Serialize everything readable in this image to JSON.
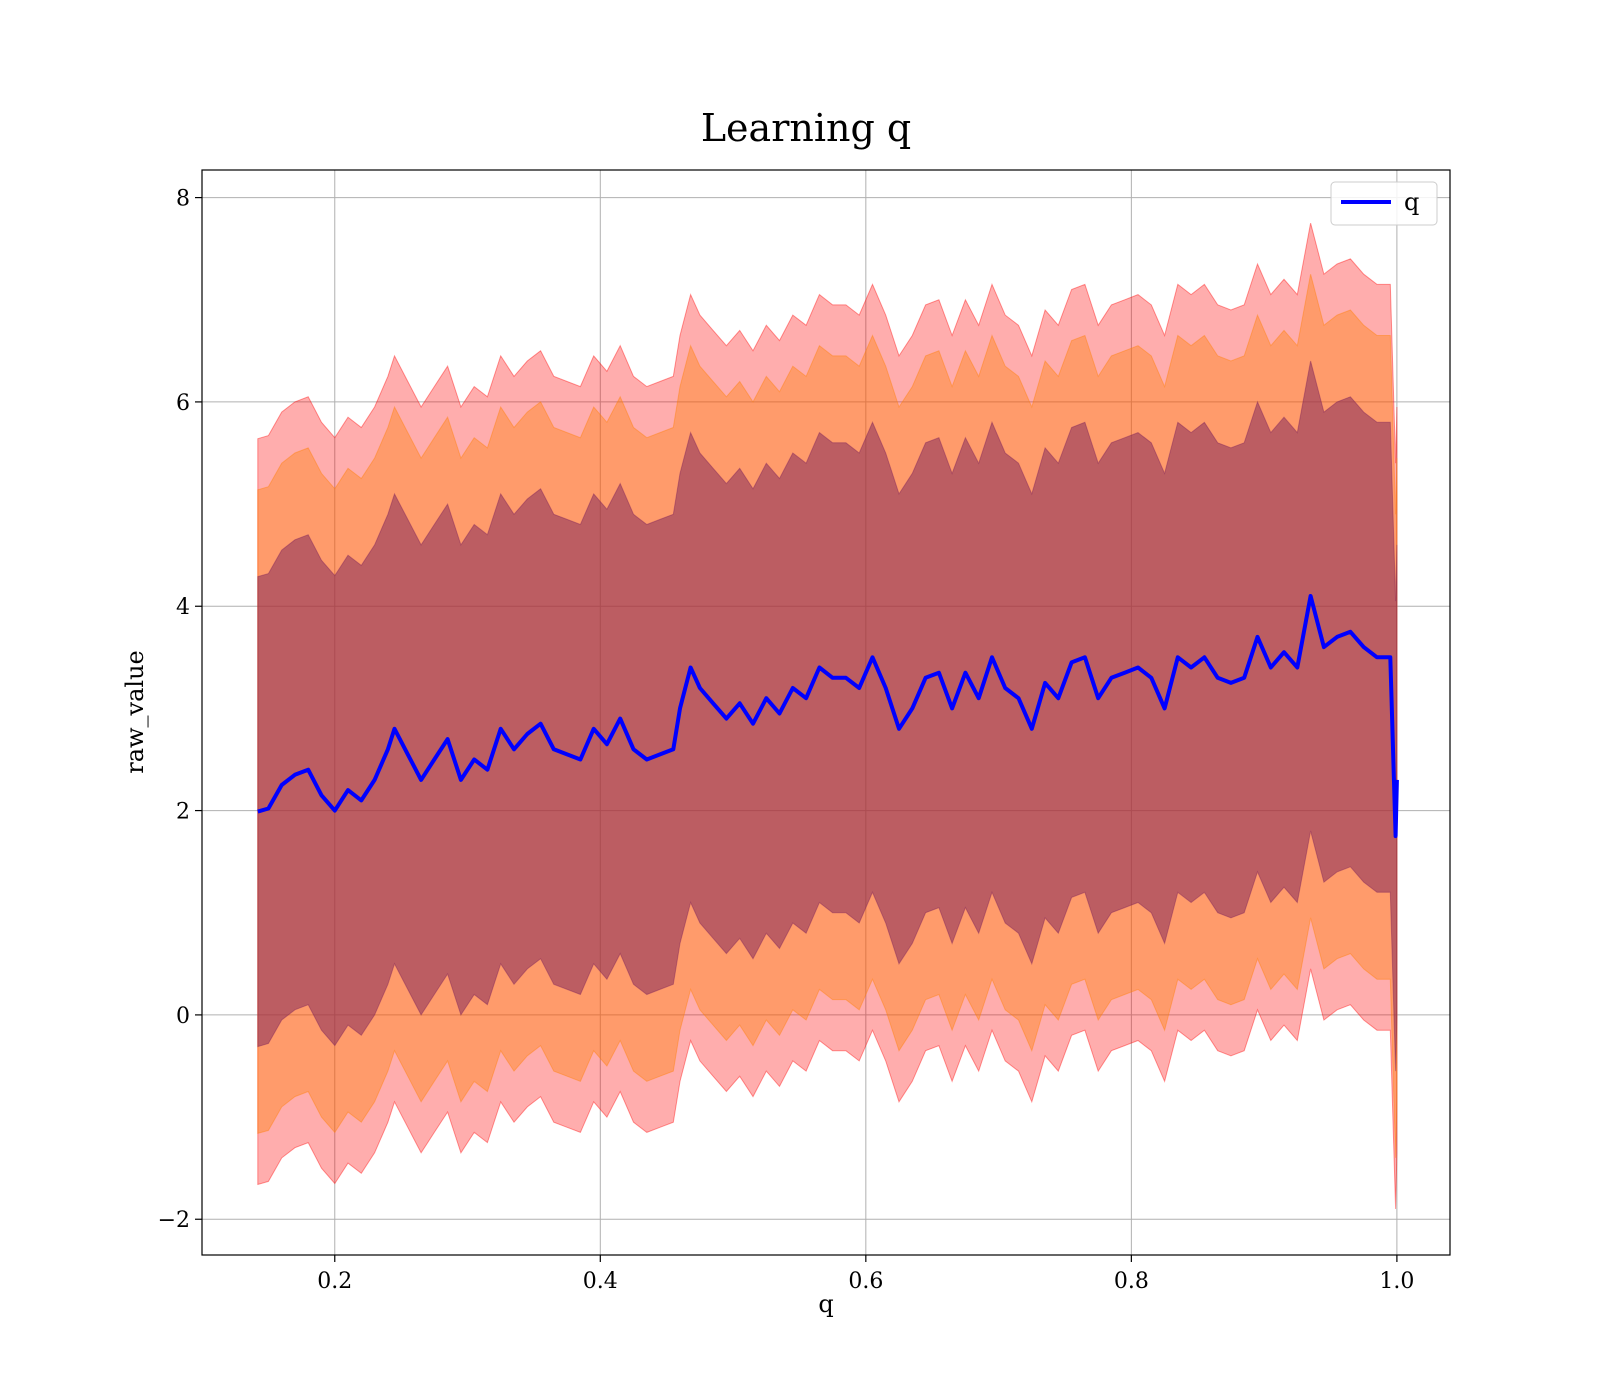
{
  "chart_data": {
    "type": "line",
    "title": "Learning q",
    "xlabel": "q",
    "ylabel": "raw_value",
    "xlim": [
      0.1,
      1.04
    ],
    "ylim": [
      -2.35,
      8.27
    ],
    "xticks": [
      0.2,
      0.4,
      0.6,
      0.8,
      1.0
    ],
    "xtick_labels": [
      "0.2",
      "0.4",
      "0.6",
      "0.8",
      "1.0"
    ],
    "yticks": [
      -2,
      0,
      2,
      4,
      6,
      8
    ],
    "ytick_labels": [
      "−2",
      "0",
      "2",
      "4",
      "6",
      "8"
    ],
    "grid": true,
    "legend": {
      "position": "top-right",
      "entries": [
        "q"
      ]
    },
    "colors": {
      "line": "#0000ff",
      "band_outer": "#ff0000",
      "band_middle": "#ff7f00",
      "band_inner": "#7a1f5a"
    },
    "series": [
      {
        "name": "q",
        "x": [
          0.142,
          0.15,
          0.16,
          0.17,
          0.18,
          0.19,
          0.2,
          0.21,
          0.22,
          0.23,
          0.24,
          0.245,
          0.255,
          0.265,
          0.275,
          0.285,
          0.295,
          0.305,
          0.315,
          0.325,
          0.335,
          0.345,
          0.355,
          0.365,
          0.375,
          0.385,
          0.395,
          0.405,
          0.415,
          0.425,
          0.435,
          0.445,
          0.455,
          0.46,
          0.468,
          0.475,
          0.485,
          0.495,
          0.505,
          0.515,
          0.525,
          0.535,
          0.545,
          0.555,
          0.565,
          0.575,
          0.585,
          0.595,
          0.605,
          0.615,
          0.625,
          0.635,
          0.645,
          0.655,
          0.665,
          0.675,
          0.685,
          0.695,
          0.705,
          0.715,
          0.725,
          0.735,
          0.745,
          0.755,
          0.765,
          0.775,
          0.785,
          0.795,
          0.805,
          0.815,
          0.825,
          0.835,
          0.845,
          0.855,
          0.865,
          0.875,
          0.885,
          0.895,
          0.905,
          0.915,
          0.925,
          0.935,
          0.945,
          0.955,
          0.965,
          0.975,
          0.985,
          0.995,
          0.999,
          1.0
        ],
        "y": [
          1.99,
          2.02,
          2.25,
          2.35,
          2.4,
          2.15,
          2.0,
          2.2,
          2.1,
          2.3,
          2.6,
          2.8,
          2.55,
          2.3,
          2.5,
          2.7,
          2.3,
          2.5,
          2.4,
          2.8,
          2.6,
          2.75,
          2.85,
          2.6,
          2.55,
          2.5,
          2.8,
          2.65,
          2.9,
          2.6,
          2.5,
          2.55,
          2.6,
          3.0,
          3.4,
          3.2,
          3.05,
          2.9,
          3.05,
          2.85,
          3.1,
          2.95,
          3.2,
          3.1,
          3.4,
          3.3,
          3.3,
          3.2,
          3.5,
          3.2,
          2.8,
          3.0,
          3.3,
          3.35,
          3.0,
          3.35,
          3.1,
          3.5,
          3.2,
          3.1,
          2.8,
          3.25,
          3.1,
          3.45,
          3.5,
          3.1,
          3.3,
          3.35,
          3.4,
          3.3,
          3.0,
          3.5,
          3.4,
          3.5,
          3.3,
          3.25,
          3.3,
          3.7,
          3.4,
          3.55,
          3.4,
          4.1,
          3.6,
          3.7,
          3.75,
          3.6,
          3.5,
          3.5,
          1.75,
          2.3
        ]
      }
    ],
    "bands": [
      {
        "offsets": [
          -3.65,
          3.65
        ]
      },
      {
        "offsets": [
          -3.15,
          3.15
        ]
      },
      {
        "offsets": [
          -2.3,
          2.3
        ]
      }
    ]
  }
}
